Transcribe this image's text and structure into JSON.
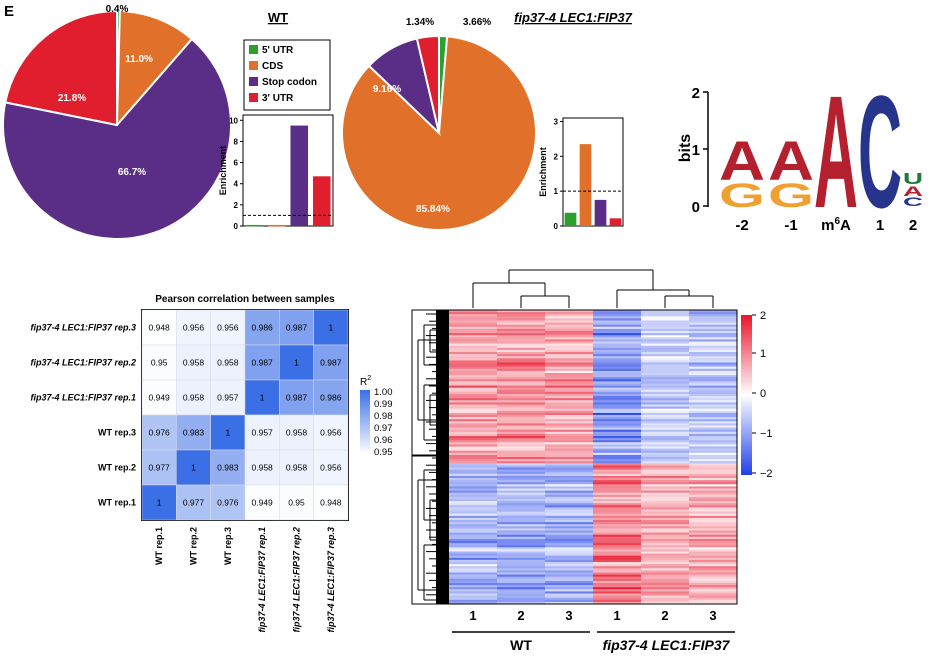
{
  "panel_label": "E",
  "colors": {
    "utr5": "#2ca02c",
    "cds": "#e0702a",
    "stop": "#5a2d86",
    "utr3": "#e01e2d",
    "pearson_hi": "#3b6fe6",
    "heat_hi": "#e8142b",
    "heat_lo": "#1f3fe8",
    "logo_A": "#b5202e",
    "logo_G": "#f0a030",
    "logo_C": "#27348b",
    "logo_U": "#1f7a3a"
  },
  "legend": [
    "5' UTR",
    "CDS",
    "Stop codon",
    "3' UTR"
  ],
  "wt_title": "WT",
  "fip_title_italic": "fip37-4 LEC1:FIP37",
  "logo_positions": [
    "-2",
    "-1",
    "m",
    "6",
    "A",
    "1",
    "2"
  ],
  "logo_ylabel": "bits",
  "heat_group_labels": [
    "WT",
    "fip37-4 LEC1:FIP37"
  ],
  "heat_col_labels": [
    "1",
    "2",
    "3",
    "1",
    "2",
    "3"
  ],
  "chart_data": [
    {
      "type": "pie",
      "title": "",
      "labels": [
        "5' UTR",
        "CDS",
        "Stop codon",
        "3' UTR"
      ],
      "values": [
        0.4,
        11.0,
        66.7,
        21.8
      ],
      "display": [
        "0.4%",
        "11.0%",
        "66.7%",
        "21.8%"
      ]
    },
    {
      "type": "bar",
      "categories": [
        "5' UTR",
        "CDS",
        "Stop codon",
        "3' UTR"
      ],
      "values": [
        0.1,
        0.1,
        9.5,
        4.7
      ],
      "ylabel": "Enrichment",
      "yticks": [
        "0",
        "2",
        "4",
        "6",
        "8",
        "10"
      ],
      "ylim": [
        0,
        10.5
      ],
      "reference_line": 1
    },
    {
      "type": "pie",
      "title": "",
      "labels": [
        "5' UTR",
        "CDS",
        "Stop codon",
        "3' UTR"
      ],
      "values": [
        1.34,
        85.84,
        9.16,
        3.66
      ],
      "display": [
        "1.34%",
        "85.84%",
        "9.16%",
        "3.66%"
      ]
    },
    {
      "type": "bar",
      "categories": [
        "5' UTR",
        "CDS",
        "Stop codon",
        "3' UTR"
      ],
      "values": [
        0.38,
        2.35,
        0.75,
        0.22
      ],
      "ylabel": "Enrichment",
      "yticks": [
        "0",
        "1",
        "2",
        "3"
      ],
      "ylim": [
        0,
        3.1
      ],
      "reference_line": 1
    },
    {
      "type": "logo",
      "ylabel": "bits",
      "yticks": [
        "0",
        "1",
        "2"
      ],
      "positions": [
        "-2",
        "-1",
        "m6A",
        "1",
        "2"
      ]
    },
    {
      "type": "heatmap",
      "title": "Pearson correlation between samples",
      "rows": [
        "fip37-4 LEC1:FIP37 rep.3",
        "fip37-4 LEC1:FIP37 rep.2",
        "fip37-4 LEC1:FIP37 rep.1",
        "WT rep.3",
        "WT rep.2",
        "WT rep.1"
      ],
      "cols": [
        "WT rep.1",
        "WT rep.2",
        "WT rep.3",
        "fip37-4 LEC1:FIP37 rep.1",
        "fip37-4 LEC1:FIP37 rep.2",
        "fip37-4 LEC1:FIP37 rep.3"
      ],
      "values": [
        [
          "0.948",
          "0.956",
          "0.956",
          "0.986",
          "0.987",
          "1"
        ],
        [
          "0.95",
          "0.958",
          "0.958",
          "0.987",
          "1",
          "0.987"
        ],
        [
          "0.949",
          "0.958",
          "0.957",
          "1",
          "0.987",
          "0.986"
        ],
        [
          "0.976",
          "0.983",
          "1",
          "0.957",
          "0.958",
          "0.956"
        ],
        [
          "0.977",
          "1",
          "0.983",
          "0.958",
          "0.958",
          "0.956"
        ],
        [
          "1",
          "0.977",
          "0.976",
          "0.949",
          "0.95",
          "0.948"
        ]
      ],
      "colorbar_label": "R",
      "colorbar_sup": "2",
      "colorbar_ticks": [
        "1.00",
        "0.99",
        "0.98",
        "0.97",
        "0.96",
        "0.95"
      ]
    },
    {
      "type": "heatmap",
      "cols": [
        "WT 1",
        "WT 2",
        "WT 3",
        "fip37-4 LEC1:FIP37 1",
        "fip37-4 LEC1:FIP37 2",
        "fip37-4 LEC1:FIP37 3"
      ],
      "row_blocks": [
        {
          "fraction": 0.52,
          "mean_z": [
            0.9,
            0.95,
            0.85,
            -1.1,
            -0.5,
            -0.6
          ]
        },
        {
          "fraction": 0.48,
          "mean_z": [
            -0.75,
            -0.8,
            -0.85,
            1.1,
            0.7,
            0.65
          ]
        }
      ],
      "colorbar_ticks": [
        "2",
        "1",
        "0",
        "−1",
        "−2"
      ],
      "clim": [
        -2,
        2
      ]
    }
  ]
}
